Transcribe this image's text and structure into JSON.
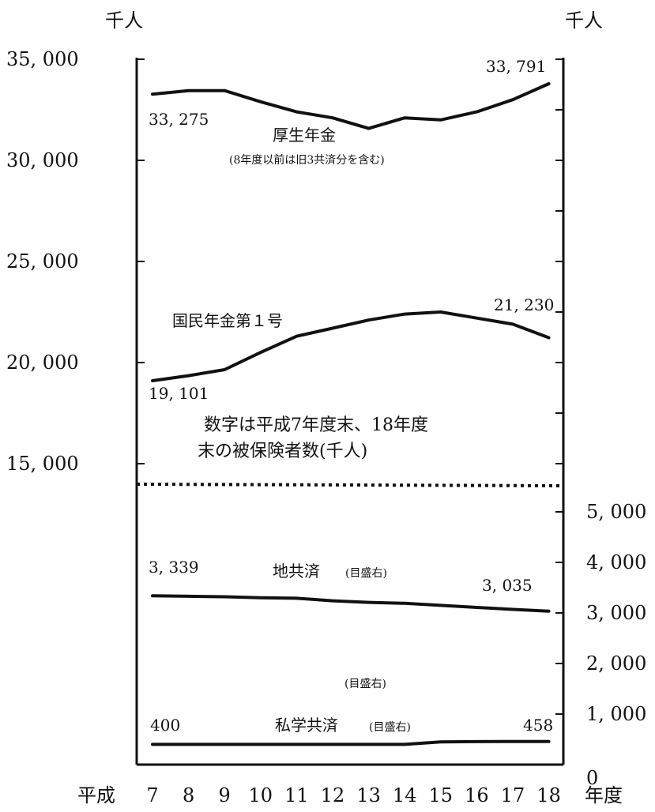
{
  "chart_data": {
    "type": "line",
    "axes": {
      "left_unit": "千人",
      "right_unit": "千人",
      "left_ylim": [
        10000,
        35000
      ],
      "left_tick_labels": [
        "35, 000",
        "30, 000",
        "25, 000",
        "20, 000",
        "15, 000"
      ],
      "left_tick_values": [
        35000,
        30000,
        25000,
        20000,
        15000
      ],
      "right_ylim": [
        0,
        5000
      ],
      "right_tick_labels": [
        "5, 000",
        "4, 000",
        "3, 000",
        "2, 000",
        "1, 000",
        "0"
      ],
      "right_tick_values": [
        5000,
        4000,
        3000,
        2000,
        1000,
        0
      ],
      "x_prefix": "平成",
      "x_suffix": "年度",
      "categories": [
        "7",
        "8",
        "9",
        "10",
        "11",
        "12",
        "13",
        "14",
        "15",
        "16",
        "17",
        "18"
      ]
    },
    "series": [
      {
        "name": "厚生年金",
        "subname": "(8年度以前は旧3共済分を含む)",
        "axis": "left",
        "values": [
          33275,
          33450,
          33450,
          32900,
          32400,
          32100,
          31580,
          32100,
          32000,
          32400,
          33000,
          33791
        ],
        "start_label": "33, 275",
        "end_label": "33, 791"
      },
      {
        "name": "国民年金第１号",
        "axis": "left",
        "values": [
          19101,
          19350,
          19650,
          20500,
          21300,
          21700,
          22100,
          22400,
          22500,
          22200,
          21900,
          21230
        ],
        "start_label": "19, 101",
        "end_label": "21, 230"
      },
      {
        "name": "地共済",
        "axis_note": "(目盛右)",
        "axis": "right",
        "values": [
          3339,
          3330,
          3320,
          3300,
          3290,
          3240,
          3210,
          3190,
          3150,
          3110,
          3070,
          3035
        ],
        "start_label": "3, 339",
        "end_label": "3, 035"
      },
      {
        "name": "私学共済",
        "axis_note": "(目盛右)",
        "axis": "right",
        "values": [
          400,
          400,
          400,
          400,
          400,
          400,
          400,
          400,
          450,
          455,
          458,
          458
        ],
        "start_label": "400",
        "end_label": "458"
      }
    ],
    "extra_note": "(目盛右)",
    "annotation": [
      "数字は平成7年度末、18年度",
      "末の被保険者数(千人)"
    ]
  }
}
